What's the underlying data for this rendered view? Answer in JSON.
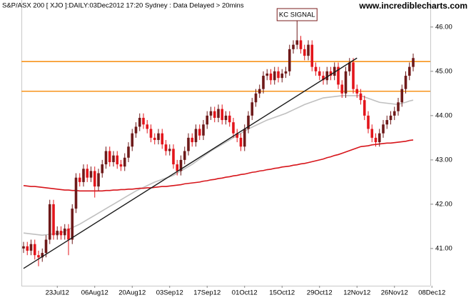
{
  "chart_data": {
    "type": "candlestick",
    "title": "S&P/ASX 200 [ XJO ]:DAILY:03Dec2012 17:20 Sydney : Data Delayed > 20mins",
    "source": "www.incrediblecharts.com",
    "categories": [
      null,
      null,
      null,
      null,
      null,
      null,
      null,
      null,
      null,
      "23Jul12",
      null,
      null,
      null,
      null,
      null,
      null,
      null,
      null,
      null,
      "06Aug12",
      null,
      null,
      null,
      null,
      null,
      null,
      null,
      null,
      null,
      "20Aug12",
      null,
      null,
      null,
      null,
      null,
      null,
      null,
      null,
      null,
      "03Sep12",
      null,
      null,
      null,
      null,
      null,
      null,
      null,
      null,
      null,
      "17Sep12",
      null,
      null,
      null,
      null,
      null,
      null,
      null,
      null,
      null,
      "01Oct12",
      null,
      null,
      null,
      null,
      null,
      null,
      null,
      null,
      null,
      "15Oct12",
      null,
      null,
      null,
      null,
      null,
      null,
      null,
      null,
      null,
      "29Oct12",
      null,
      null,
      null,
      null,
      null,
      null,
      null,
      null,
      null,
      "12Nov12",
      null,
      null,
      null,
      null,
      null,
      null,
      null,
      null,
      null,
      "26Nov12",
      null,
      null,
      null,
      null,
      null,
      null,
      null,
      null,
      null,
      "08Dec12"
    ],
    "open": [
      41.0,
      41.05,
      40.95,
      41.1,
      40.85,
      40.8,
      40.9,
      41.2,
      42.0,
      41.3,
      41.4,
      41.3,
      41.45,
      41.2,
      41.9,
      42.6,
      42.5,
      42.8,
      42.6,
      42.75,
      42.4,
      42.7,
      42.9,
      43.2,
      42.95,
      43.1,
      42.9,
      42.85,
      43.05,
      43.3,
      43.6,
      43.75,
      43.95,
      43.8,
      43.7,
      43.5,
      43.45,
      43.6,
      43.35,
      43.2,
      43.25,
      42.9,
      42.75,
      43.0,
      43.2,
      43.5,
      43.4,
      43.7,
      43.55,
      43.8,
      44.0,
      44.1,
      43.95,
      44.15,
      43.9,
      44.0,
      43.85,
      43.6,
      43.5,
      43.3,
      43.7,
      44.0,
      44.3,
      44.5,
      44.6,
      44.9,
      44.95,
      44.8,
      45.0,
      44.85,
      44.95,
      45.0,
      45.5,
      45.6,
      45.7,
      45.5,
      45.35,
      45.6,
      45.1,
      45.0,
      44.9,
      44.8,
      45.0,
      44.9,
      45.1,
      44.7,
      44.5,
      45.0,
      45.2,
      44.6,
      44.5,
      44.35,
      44.0,
      43.7,
      43.5,
      43.4,
      43.6,
      43.8,
      43.9,
      44.0,
      44.1,
      44.3,
      44.6,
      44.9,
      45.1,
      null,
      null,
      null,
      null,
      null
    ],
    "high": [
      41.15,
      41.15,
      41.2,
      41.2,
      40.95,
      41.0,
      41.3,
      42.1,
      42.1,
      41.5,
      41.5,
      41.55,
      41.55,
      42.0,
      42.7,
      42.7,
      42.9,
      42.9,
      42.85,
      42.85,
      42.8,
      43.0,
      43.3,
      43.3,
      43.2,
      43.2,
      43.0,
      43.15,
      43.4,
      43.7,
      43.85,
      44.05,
      44.05,
      43.9,
      43.8,
      43.6,
      43.7,
      43.7,
      43.45,
      43.35,
      43.35,
      43.0,
      43.1,
      43.3,
      43.6,
      43.6,
      43.8,
      43.8,
      43.9,
      44.1,
      44.2,
      44.2,
      44.25,
      44.25,
      44.1,
      44.1,
      43.95,
      43.7,
      43.6,
      43.8,
      44.1,
      44.4,
      44.6,
      44.7,
      45.0,
      45.05,
      45.05,
      45.1,
      45.1,
      45.05,
      45.1,
      45.6,
      45.7,
      46.2,
      45.8,
      45.6,
      45.7,
      45.7,
      45.2,
      45.1,
      45.0,
      45.1,
      45.1,
      45.2,
      45.2,
      44.8,
      45.1,
      45.3,
      45.3,
      44.7,
      44.6,
      44.45,
      44.1,
      43.8,
      43.6,
      43.7,
      43.9,
      44.0,
      44.1,
      44.2,
      44.4,
      44.7,
      45.0,
      45.2,
      45.4,
      null,
      null,
      null,
      null,
      null
    ],
    "low": [
      40.9,
      40.85,
      40.85,
      40.75,
      40.6,
      40.7,
      40.8,
      41.1,
      41.2,
      41.2,
      41.2,
      41.2,
      40.85,
      41.1,
      41.8,
      42.4,
      42.4,
      42.5,
      42.5,
      42.15,
      42.3,
      42.6,
      42.8,
      42.85,
      42.85,
      42.8,
      42.75,
      42.75,
      42.95,
      43.2,
      43.5,
      43.65,
      43.7,
      43.6,
      43.4,
      43.35,
      43.35,
      43.25,
      43.1,
      43.1,
      42.8,
      42.65,
      42.65,
      42.9,
      43.1,
      43.3,
      43.3,
      43.45,
      43.45,
      43.7,
      43.9,
      43.85,
      43.85,
      43.8,
      43.8,
      43.75,
      43.5,
      43.4,
      43.2,
      43.2,
      43.6,
      43.9,
      44.2,
      44.4,
      44.5,
      44.8,
      44.7,
      44.7,
      44.75,
      44.75,
      44.85,
      44.9,
      45.4,
      45.5,
      45.4,
      45.25,
      45.25,
      45.0,
      44.9,
      44.8,
      44.7,
      44.7,
      44.8,
      44.8,
      44.6,
      44.4,
      44.4,
      44.9,
      44.5,
      44.4,
      44.25,
      43.9,
      43.6,
      43.4,
      43.3,
      43.3,
      43.5,
      43.7,
      43.8,
      43.9,
      44.0,
      44.2,
      44.5,
      44.8,
      45.0,
      null,
      null,
      null,
      null,
      null
    ],
    "close": [
      41.05,
      40.95,
      41.1,
      40.85,
      40.8,
      40.9,
      41.2,
      42.0,
      41.3,
      41.4,
      41.3,
      41.45,
      41.2,
      41.9,
      42.6,
      42.5,
      42.8,
      42.6,
      42.75,
      42.4,
      42.7,
      42.9,
      43.2,
      42.95,
      43.1,
      42.9,
      42.85,
      43.05,
      43.3,
      43.6,
      43.75,
      43.95,
      43.8,
      43.7,
      43.5,
      43.45,
      43.6,
      43.35,
      43.2,
      43.25,
      42.9,
      42.75,
      43.0,
      43.2,
      43.5,
      43.4,
      43.7,
      43.55,
      43.8,
      44.0,
      44.1,
      43.95,
      44.15,
      43.9,
      44.0,
      43.85,
      43.6,
      43.5,
      43.3,
      43.7,
      44.0,
      44.3,
      44.5,
      44.6,
      44.9,
      44.95,
      44.8,
      45.0,
      44.85,
      44.95,
      45.0,
      45.5,
      45.6,
      45.7,
      45.5,
      45.35,
      45.6,
      45.1,
      45.0,
      44.9,
      44.8,
      45.0,
      44.9,
      45.1,
      44.7,
      44.5,
      45.0,
      45.2,
      44.6,
      44.5,
      44.35,
      44.0,
      43.7,
      43.5,
      43.4,
      43.6,
      43.8,
      43.9,
      44.0,
      44.1,
      44.3,
      44.6,
      44.9,
      45.1,
      45.3,
      null,
      null,
      null,
      null,
      null
    ],
    "up_color": "#6e1a1a",
    "down_color": "#e3151b",
    "lines": [
      {
        "color": "#c0c0c0",
        "values": [
          41.35,
          41.34,
          41.33,
          41.32,
          41.31,
          41.3,
          41.31,
          41.32,
          41.33,
          41.34,
          41.35,
          41.39,
          41.43,
          41.47,
          41.51,
          41.55,
          41.6,
          41.65,
          41.7,
          41.75,
          41.8,
          41.85,
          41.9,
          41.95,
          42.0,
          42.05,
          42.1,
          42.15,
          42.2,
          42.25,
          42.3,
          42.34,
          42.38,
          42.42,
          42.46,
          42.5,
          42.53,
          42.56,
          42.59,
          42.62,
          42.65,
          42.7,
          42.75,
          42.8,
          42.85,
          42.9,
          42.96,
          43.02,
          43.08,
          43.14,
          43.2,
          43.25,
          43.3,
          43.35,
          43.4,
          43.45,
          43.5,
          43.55,
          43.6,
          43.65,
          43.7,
          43.74,
          43.78,
          43.82,
          43.86,
          43.9,
          43.93,
          43.96,
          43.99,
          44.02,
          44.05,
          44.09,
          44.13,
          44.17,
          44.21,
          44.25,
          44.28,
          44.31,
          44.34,
          44.37,
          44.4,
          44.41,
          44.42,
          44.43,
          44.44,
          44.45,
          44.45,
          44.45,
          44.45,
          44.45,
          44.45,
          44.42,
          44.39,
          44.36,
          44.33,
          44.3,
          44.29,
          44.28,
          44.27,
          44.26,
          44.25,
          44.28,
          44.3,
          44.33,
          44.35,
          null,
          null,
          null,
          null,
          null
        ]
      },
      {
        "color": "#d7151b",
        "values": [
          42.42,
          42.41,
          42.4,
          42.4,
          42.39,
          42.38,
          42.37,
          42.36,
          42.35,
          42.34,
          42.33,
          42.32,
          42.32,
          42.31,
          42.31,
          42.3,
          42.3,
          42.3,
          42.3,
          42.3,
          42.3,
          42.3,
          42.31,
          42.31,
          42.32,
          42.32,
          42.33,
          42.33,
          42.34,
          42.34,
          42.35,
          42.36,
          42.36,
          42.37,
          42.37,
          42.38,
          42.39,
          42.4,
          42.4,
          42.41,
          42.42,
          42.43,
          42.44,
          42.46,
          42.47,
          42.48,
          42.49,
          42.5,
          42.52,
          42.53,
          42.55,
          42.56,
          42.58,
          42.59,
          42.61,
          42.62,
          42.64,
          42.65,
          42.67,
          42.68,
          42.7,
          42.72,
          42.73,
          42.75,
          42.76,
          42.78,
          42.79,
          42.81,
          42.82,
          42.84,
          42.85,
          42.86,
          42.88,
          42.89,
          42.91,
          42.92,
          42.94,
          42.96,
          42.98,
          43.0,
          43.02,
          43.05,
          43.07,
          43.1,
          43.12,
          43.15,
          43.18,
          43.21,
          43.24,
          43.27,
          43.3,
          43.31,
          43.32,
          43.34,
          43.35,
          43.36,
          43.37,
          43.38,
          43.38,
          43.39,
          43.4,
          43.41,
          43.42,
          43.44,
          43.45,
          null,
          null,
          null,
          null,
          null
        ]
      }
    ],
    "levels": [
      {
        "value": 45.22,
        "color": "#f7941d"
      },
      {
        "value": 44.55,
        "color": "#f7941d"
      }
    ],
    "trendline": {
      "x": [
        0,
        89
      ],
      "values": [
        40.55,
        45.3
      ],
      "color": "#1a1a1a"
    },
    "annotation": {
      "text": "KC SIGNAL",
      "x": 73
    },
    "ylim": [
      40.16,
      46.61
    ],
    "yticks": [
      {
        "value": 41,
        "label": "41.00"
      },
      {
        "value": 42,
        "label": "42.00"
      },
      {
        "value": 43,
        "label": "43.00"
      },
      {
        "value": 44,
        "label": "44.00"
      },
      {
        "value": 45,
        "label": "45.00"
      },
      {
        "value": 46,
        "label": "46.00"
      }
    ]
  }
}
